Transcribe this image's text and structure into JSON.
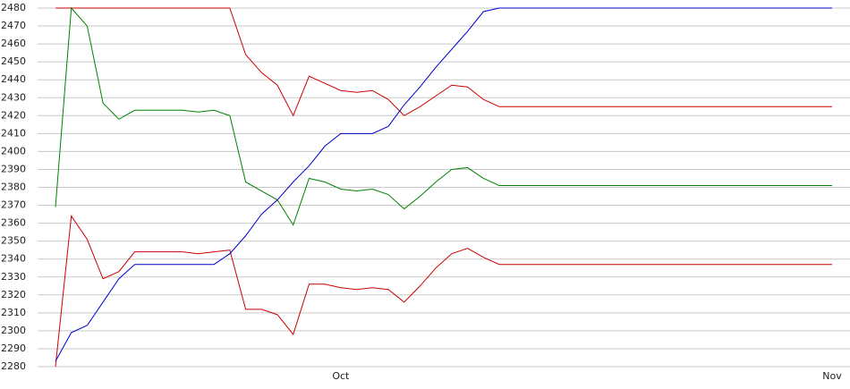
{
  "chart_data": {
    "type": "line",
    "categories": [
      null,
      null,
      null,
      null,
      null,
      null,
      null,
      null,
      null,
      null,
      null,
      null,
      null,
      null,
      null,
      null,
      null,
      null,
      "Oct",
      null,
      null,
      null,
      null,
      null,
      null,
      null,
      null,
      null,
      null,
      null,
      null,
      null,
      null,
      null,
      null,
      null,
      null,
      null,
      null,
      null,
      null,
      null,
      null,
      null,
      null,
      null,
      null,
      null,
      null,
      "Nov"
    ],
    "series": [
      {
        "color": "#cc0000",
        "values": [
          2480,
          2480,
          2480,
          2480,
          2480,
          2480,
          2480,
          2480,
          2480,
          2480,
          2480,
          2480,
          2454,
          2444,
          2437,
          2420,
          2442,
          2438,
          2434,
          2433,
          2434,
          2429,
          2420,
          2425,
          2431,
          2437,
          2436,
          2429,
          2425,
          2425,
          2425,
          2425,
          2425,
          2425,
          2425,
          2425,
          2425,
          2425,
          2425,
          2425,
          2425,
          2425,
          2425,
          2425,
          2425,
          2425,
          2425,
          2425,
          2425,
          2425
        ]
      },
      {
        "color": "#008000",
        "values": [
          2369,
          2480,
          2470,
          2427,
          2418,
          2423,
          2423,
          2423,
          2423,
          2422,
          2423,
          2420,
          2383,
          2378,
          2373,
          2359,
          2385,
          2383,
          2379,
          2378,
          2379,
          2376,
          2368,
          2375,
          2383,
          2390,
          2391,
          2385,
          2381,
          2381,
          2381,
          2381,
          2381,
          2381,
          2381,
          2381,
          2381,
          2381,
          2381,
          2381,
          2381,
          2381,
          2381,
          2381,
          2381,
          2381,
          2381,
          2381,
          2381,
          2381
        ]
      },
      {
        "color": "#cc0000",
        "values": [
          2280,
          2364,
          2351,
          2329,
          2333,
          2344,
          2344,
          2344,
          2344,
          2343,
          2344,
          2345,
          2312,
          2312,
          2309,
          2298,
          2326,
          2326,
          2324,
          2323,
          2324,
          2323,
          2316,
          2325,
          2335,
          2343,
          2346,
          2341,
          2337,
          2337,
          2337,
          2337,
          2337,
          2337,
          2337,
          2337,
          2337,
          2337,
          2337,
          2337,
          2337,
          2337,
          2337,
          2337,
          2337,
          2337,
          2337,
          2337,
          2337,
          2337
        ]
      },
      {
        "color": "#0000cc",
        "values": [
          2283,
          2299,
          2303,
          2316,
          2329,
          2337,
          2337,
          2337,
          2337,
          2337,
          2337,
          2343,
          2353,
          2365,
          2373,
          2383,
          2392,
          2403,
          2410,
          2410,
          2410,
          2414,
          2426,
          2436,
          2447,
          2457,
          2467,
          2478,
          2480,
          2480,
          2480,
          2480,
          2480,
          2480,
          2480,
          2480,
          2480,
          2480,
          2480,
          2480,
          2480,
          2480,
          2480,
          2480,
          2480,
          2480,
          2480,
          2480,
          2480,
          2480
        ]
      }
    ],
    "ylim": [
      2280,
      2480
    ],
    "yticks": [
      2280,
      2290,
      2300,
      2310,
      2320,
      2330,
      2340,
      2350,
      2360,
      2370,
      2380,
      2390,
      2400,
      2410,
      2420,
      2430,
      2440,
      2450,
      2460,
      2470,
      2480
    ],
    "grid": true
  }
}
